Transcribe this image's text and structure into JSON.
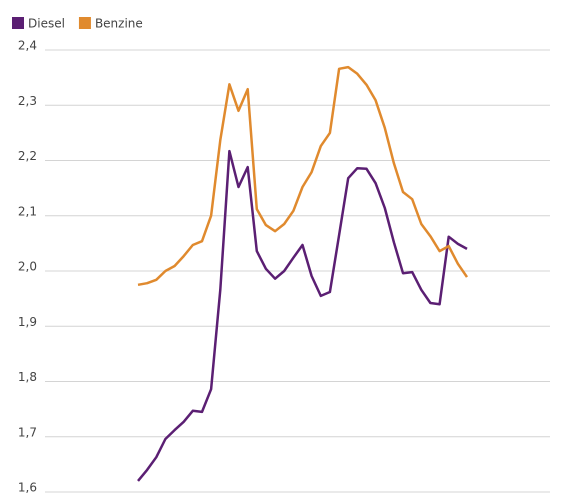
{
  "chart_data": {
    "type": "line",
    "categories": [
      null,
      null,
      null,
      null,
      null,
      null,
      null,
      null,
      null,
      null,
      null,
      null,
      null,
      null,
      null,
      null,
      null,
      null,
      null,
      null,
      null,
      null,
      null,
      null,
      null,
      null,
      null,
      null,
      null,
      null,
      null,
      null,
      null,
      null,
      null,
      null,
      null
    ],
    "series": [
      {
        "name": "Diesel",
        "color": "#5b1f73",
        "values": [
          1.62,
          1.64,
          1.663,
          1.696,
          1.712,
          1.727,
          1.747,
          1.745,
          1.786,
          1.966,
          2.217,
          2.152,
          2.188,
          2.036,
          2.004,
          1.986,
          2.0,
          2.024,
          2.047,
          1.991,
          1.955,
          1.962,
          2.065,
          2.168,
          2.186,
          2.185,
          2.159,
          2.114,
          2.052,
          1.996,
          1.998,
          1.966,
          1.942,
          1.94,
          2.062,
          2.049,
          2.04
        ]
      },
      {
        "name": "Benzine",
        "color": "#e08a2e",
        "values": [
          1.975,
          1.978,
          1.984,
          2.0,
          2.009,
          2.027,
          2.047,
          2.054,
          2.1,
          2.237,
          2.338,
          2.29,
          2.329,
          2.112,
          2.083,
          2.072,
          2.085,
          2.109,
          2.152,
          2.179,
          2.226,
          2.25,
          2.366,
          2.369,
          2.357,
          2.337,
          2.309,
          2.259,
          2.195,
          2.143,
          2.13,
          2.085,
          2.063,
          2.036,
          2.045,
          2.013,
          1.989
        ]
      }
    ],
    "ylim": [
      1.6,
      2.4
    ],
    "yticks": [
      {
        "value": 1.6,
        "label": "1,6"
      },
      {
        "value": 1.7,
        "label": "1,7"
      },
      {
        "value": 1.8,
        "label": "1,8"
      },
      {
        "value": 1.9,
        "label": "1,9"
      },
      {
        "value": 2.0,
        "label": "2,0"
      },
      {
        "value": 2.1,
        "label": "2,1"
      },
      {
        "value": 2.2,
        "label": "2,2"
      },
      {
        "value": 2.3,
        "label": "2,3"
      },
      {
        "value": 2.4,
        "label": "2,4"
      }
    ],
    "grid": true,
    "legend": "top-left"
  }
}
